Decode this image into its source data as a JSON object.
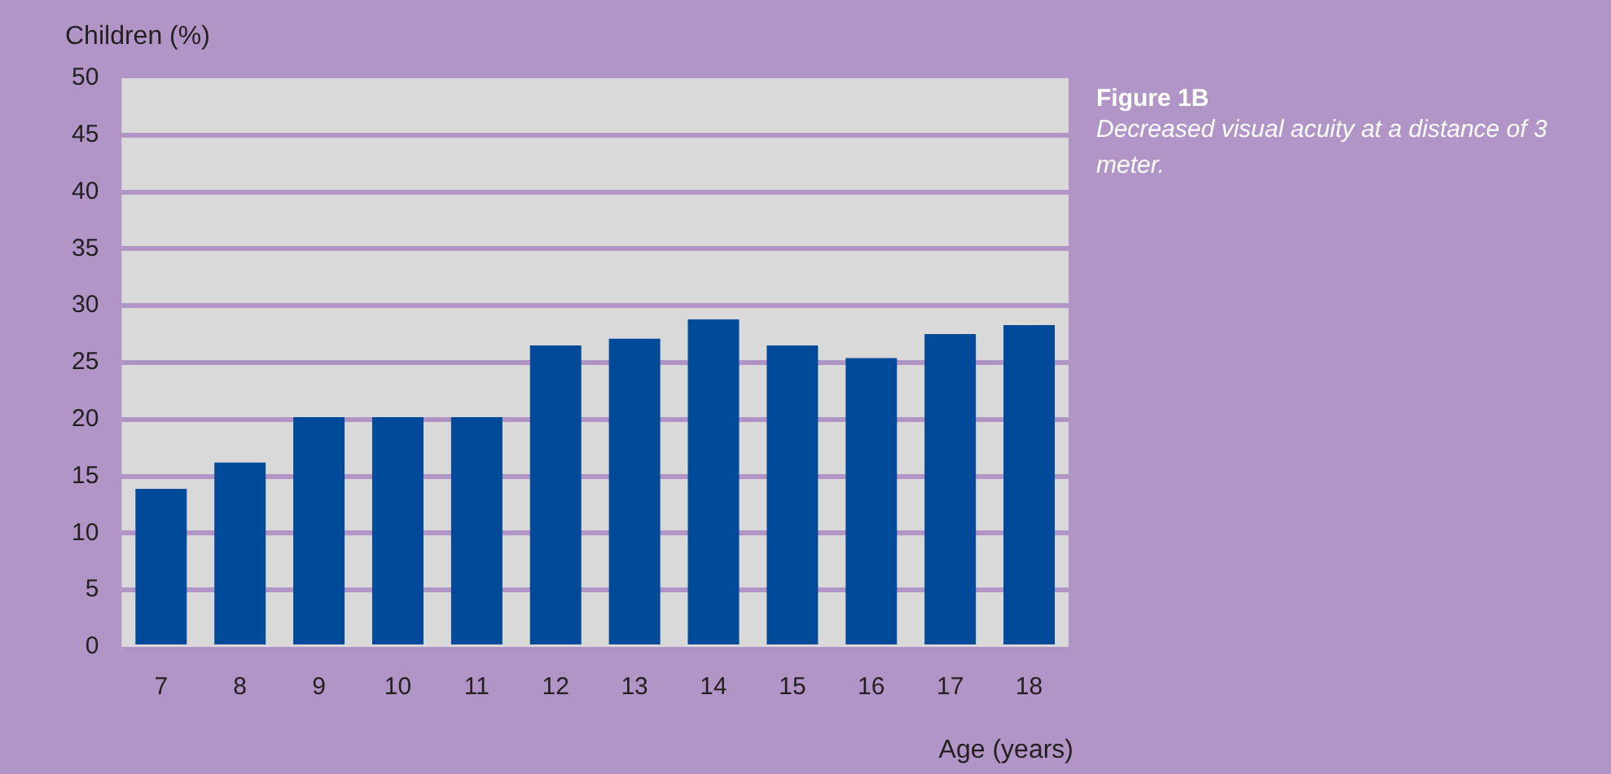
{
  "chart_data": {
    "type": "bar",
    "title": "Figure 1B",
    "subtitle": "Decreased visual acuity at a distance of 3 meter.",
    "xlabel": "Age (years)",
    "ylabel": "Children (%)",
    "categories": [
      "7",
      "8",
      "9",
      "10",
      "11",
      "12",
      "13",
      "14",
      "15",
      "16",
      "17",
      "18"
    ],
    "values": [
      13.9,
      16.2,
      20.2,
      20.2,
      20.2,
      26.5,
      27.1,
      28.8,
      26.5,
      25.4,
      27.5,
      28.3
    ],
    "color": "#004a99",
    "ylim": [
      0,
      50
    ],
    "yticks": [
      0,
      5,
      10,
      15,
      20,
      25,
      30,
      35,
      40,
      45,
      50
    ],
    "grid": "y",
    "legend": false
  }
}
